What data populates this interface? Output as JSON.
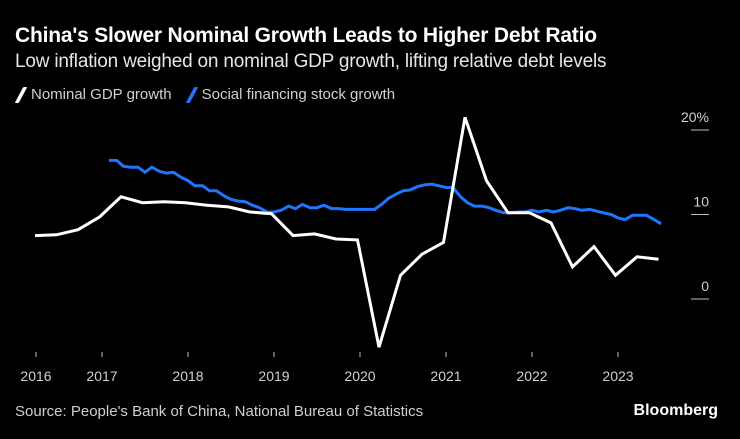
{
  "header": {
    "title": "China's Slower Nominal Growth Leads to Higher Debt Ratio",
    "subtitle": "Low inflation weighed on nominal GDP growth, lifting relative debt levels"
  },
  "legend": [
    {
      "label": "Nominal GDP growth",
      "color": "#ffffff"
    },
    {
      "label": "Social financing stock growth",
      "color": "#1f75fe"
    }
  ],
  "footer": {
    "source": "Source: People's Bank of China, National Bureau of Statistics",
    "brand": "Bloomberg"
  },
  "chart_data": {
    "type": "line",
    "title": "China's Slower Nominal Growth Leads to Higher Debt Ratio",
    "subtitle": "Low inflation weighed on nominal GDP growth, lifting relative debt levels",
    "xlabel": "",
    "ylabel": "",
    "ylim": [
      -6,
      22
    ],
    "xlim": [
      2016.1,
      2023.75
    ],
    "y_ticks": [
      {
        "value": 20,
        "label": "20%"
      },
      {
        "value": 10,
        "label": "10"
      },
      {
        "value": 0,
        "label": "0"
      }
    ],
    "x_ticks": [
      {
        "value": 2016.25,
        "label": "2016"
      },
      {
        "value": 2017.0,
        "label": "2017"
      },
      {
        "value": 2018.0,
        "label": "2018"
      },
      {
        "value": 2019.0,
        "label": "2019"
      },
      {
        "value": 2020.0,
        "label": "2020"
      },
      {
        "value": 2021.0,
        "label": "2021"
      },
      {
        "value": 2022.0,
        "label": "2022"
      },
      {
        "value": 2023.0,
        "label": "2023"
      }
    ],
    "y_axis_position": "right",
    "grid": false,
    "legend_position": "top-left",
    "series": [
      {
        "name": "Nominal GDP growth",
        "color": "#ffffff",
        "frequency": "quarterly",
        "x": [
          2016.25,
          2016.5,
          2016.75,
          2017.0,
          2017.25,
          2017.5,
          2017.75,
          2018.0,
          2018.25,
          2018.5,
          2018.75,
          2019.0,
          2019.25,
          2019.5,
          2019.75,
          2020.0,
          2020.25,
          2020.5,
          2020.75,
          2021.0,
          2021.25,
          2021.5,
          2021.75,
          2022.0,
          2022.25,
          2022.5,
          2022.75,
          2023.0,
          2023.25,
          2023.5
        ],
        "values": [
          7.5,
          7.6,
          8.2,
          9.7,
          12.1,
          11.4,
          11.5,
          11.4,
          11.1,
          10.9,
          10.3,
          10.1,
          7.5,
          7.7,
          7.1,
          7.0,
          -5.7,
          2.8,
          5.3,
          6.7,
          21.5,
          14.0,
          10.2,
          10.2,
          9.0,
          3.8,
          6.2,
          2.8,
          5.0,
          4.7
        ]
      },
      {
        "name": "Social financing stock growth",
        "color": "#1f75fe",
        "frequency": "monthly",
        "x": [
          2017.08,
          2017.17,
          2017.25,
          2017.33,
          2017.42,
          2017.5,
          2017.58,
          2017.67,
          2017.75,
          2017.83,
          2017.92,
          2018.0,
          2018.08,
          2018.17,
          2018.25,
          2018.33,
          2018.42,
          2018.5,
          2018.58,
          2018.67,
          2018.75,
          2018.83,
          2018.92,
          2019.0,
          2019.08,
          2019.17,
          2019.25,
          2019.33,
          2019.42,
          2019.5,
          2019.58,
          2019.67,
          2019.75,
          2019.83,
          2019.92,
          2020.0,
          2020.08,
          2020.17,
          2020.25,
          2020.33,
          2020.42,
          2020.5,
          2020.58,
          2020.67,
          2020.75,
          2020.83,
          2020.92,
          2021.0,
          2021.08,
          2021.17,
          2021.25,
          2021.33,
          2021.42,
          2021.5,
          2021.58,
          2021.67,
          2021.75,
          2021.83,
          2021.92,
          2022.0,
          2022.08,
          2022.17,
          2022.25,
          2022.33,
          2022.42,
          2022.5,
          2022.58,
          2022.67,
          2022.75,
          2022.83,
          2022.92,
          2023.0,
          2023.08,
          2023.17,
          2023.25,
          2023.33,
          2023.42,
          2023.5
        ],
        "values": [
          16.4,
          16.4,
          15.7,
          15.6,
          15.6,
          15.0,
          15.6,
          15.1,
          14.9,
          15.0,
          14.4,
          14.0,
          13.4,
          13.4,
          12.8,
          12.8,
          12.2,
          11.8,
          11.6,
          11.5,
          11.1,
          10.8,
          10.3,
          10.3,
          10.5,
          11.0,
          10.7,
          11.2,
          10.8,
          10.8,
          11.1,
          10.7,
          10.7,
          10.6,
          10.6,
          10.6,
          10.6,
          10.6,
          11.2,
          11.9,
          12.4,
          12.8,
          12.9,
          13.3,
          13.5,
          13.6,
          13.4,
          13.2,
          13.2,
          12.1,
          11.4,
          11.0,
          11.0,
          10.8,
          10.5,
          10.2,
          10.2,
          10.3,
          10.3,
          10.5,
          10.3,
          10.5,
          10.3,
          10.5,
          10.8,
          10.7,
          10.5,
          10.6,
          10.4,
          10.2,
          10.0,
          9.6,
          9.4,
          9.9,
          9.9,
          9.9,
          9.4,
          8.9
        ]
      }
    ]
  }
}
